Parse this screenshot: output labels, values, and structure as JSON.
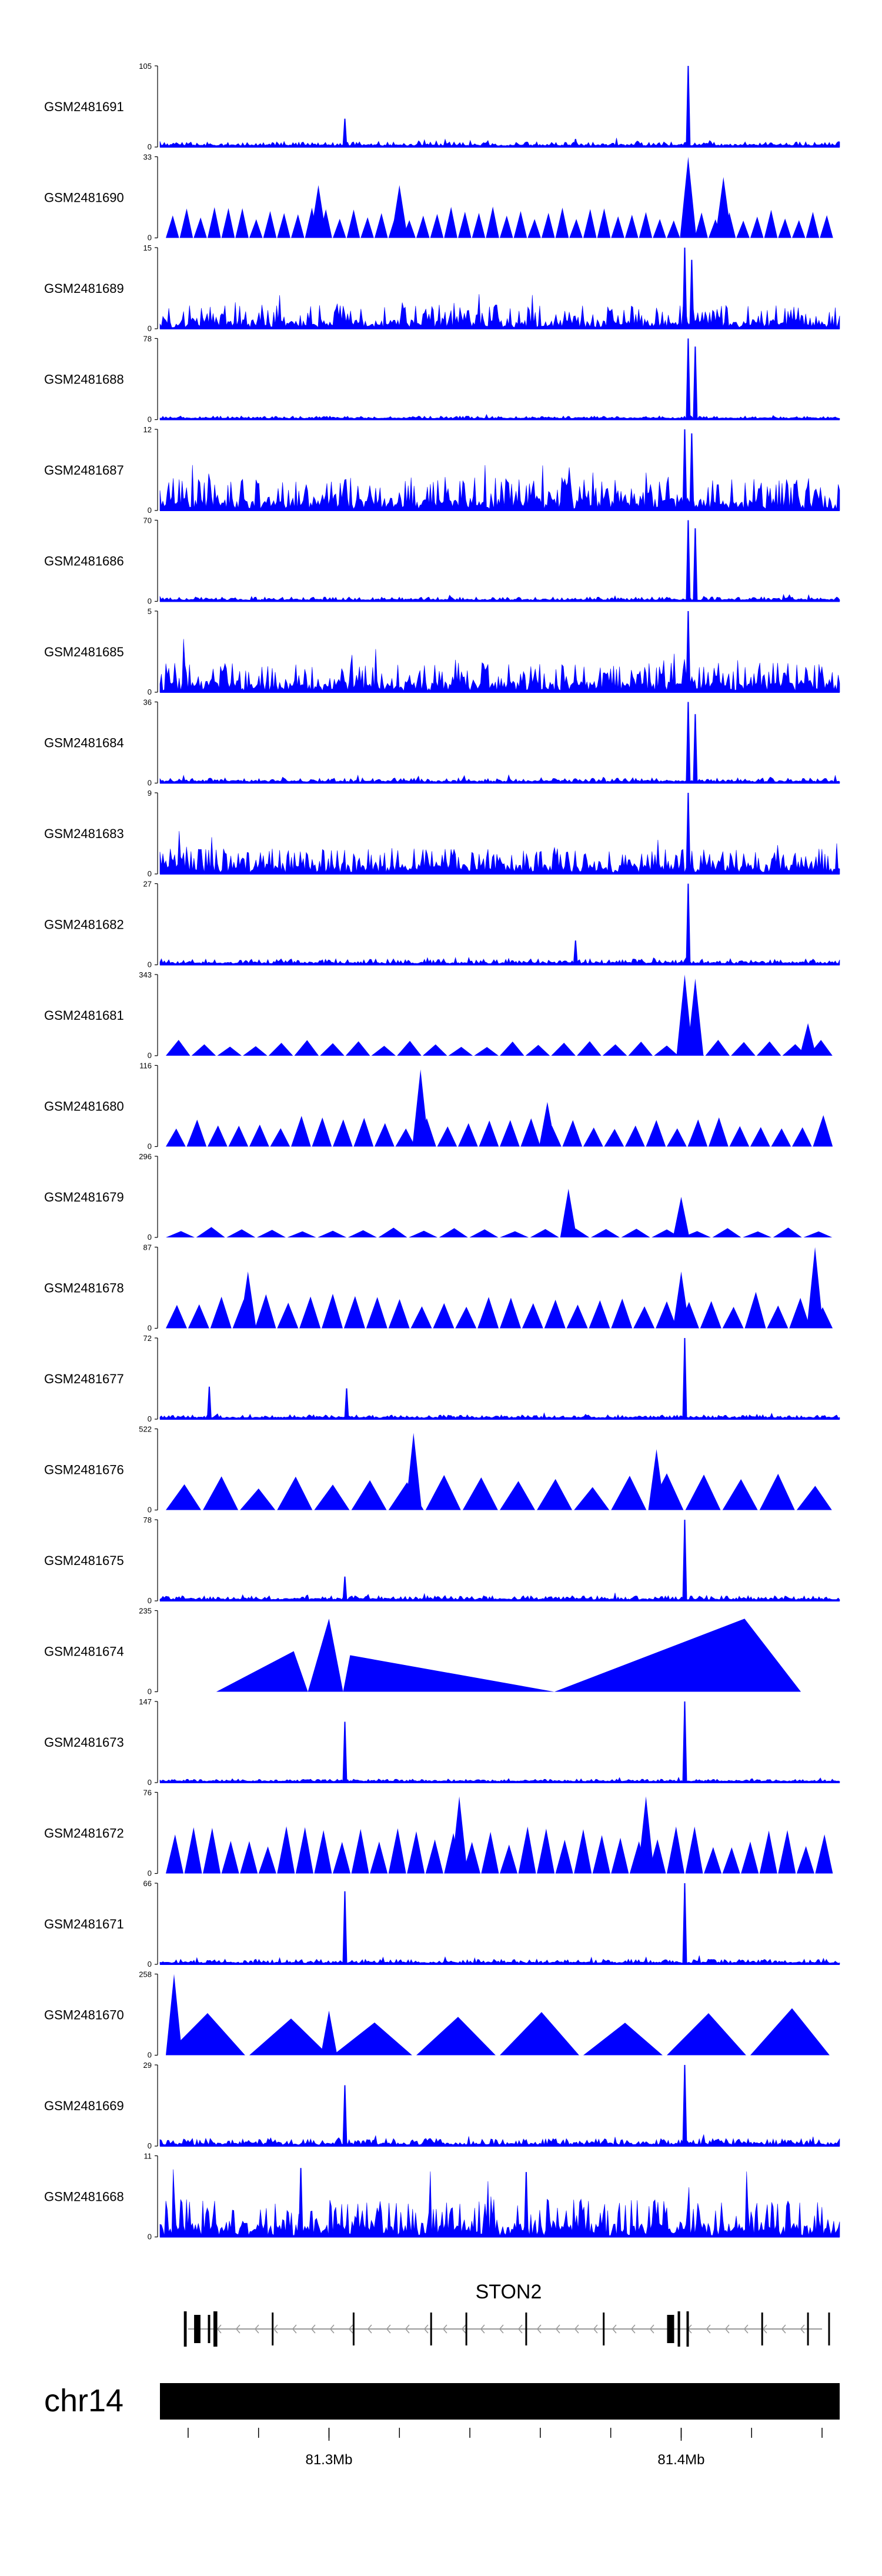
{
  "chart_data": {
    "type": "area",
    "title": "",
    "xlabel": "",
    "ylabel": "",
    "chromosome": "chr14",
    "xlim": [
      81.252,
      81.445
    ],
    "x_unit": "Mb",
    "x_ticks": [
      {
        "value": 81.3,
        "label": "81.3Mb"
      },
      {
        "value": 81.4,
        "label": "81.4Mb"
      }
    ],
    "gene": {
      "name": "STON2",
      "start": 81.26,
      "end": 81.44,
      "strand": "-"
    },
    "series": [
      {
        "name": "GSM2481691",
        "ymax": 105,
        "ymin": 0,
        "style": "dense",
        "noise": 0.05,
        "peaks": [
          [
            81.402,
            1.0
          ],
          [
            81.3045,
            0.35
          ],
          [
            81.37,
            0.1
          ]
        ]
      },
      {
        "name": "GSM2481690",
        "ymax": 33,
        "ymin": 0,
        "style": "triangles",
        "count": 48,
        "peaks": [
          [
            81.402,
            1.0
          ],
          [
            81.297,
            0.65
          ],
          [
            81.32,
            0.65
          ],
          [
            81.412,
            0.75
          ]
        ]
      },
      {
        "name": "GSM2481689",
        "ymax": 15,
        "ymin": 0,
        "style": "dense",
        "noise": 0.28,
        "peaks": [
          [
            81.401,
            1.0
          ],
          [
            81.403,
            0.85
          ]
        ]
      },
      {
        "name": "GSM2481688",
        "ymax": 78,
        "ymin": 0,
        "style": "dense",
        "noise": 0.03,
        "peaks": [
          [
            81.402,
            1.0
          ],
          [
            81.404,
            0.9
          ]
        ]
      },
      {
        "name": "GSM2481687",
        "ymax": 12,
        "ymin": 0,
        "style": "dense",
        "noise": 0.4,
        "peaks": [
          [
            81.401,
            1.0
          ],
          [
            81.403,
            0.95
          ]
        ]
      },
      {
        "name": "GSM2481686",
        "ymax": 70,
        "ymin": 0,
        "style": "dense",
        "noise": 0.04,
        "peaks": [
          [
            81.402,
            1.0
          ],
          [
            81.404,
            0.9
          ]
        ]
      },
      {
        "name": "GSM2481685",
        "ymax": 5,
        "ymin": 0,
        "style": "dense",
        "noise": 0.35,
        "peaks": [
          [
            81.402,
            1.0
          ]
        ]
      },
      {
        "name": "GSM2481684",
        "ymax": 36,
        "ymin": 0,
        "style": "dense",
        "noise": 0.05,
        "peaks": [
          [
            81.402,
            1.0
          ],
          [
            81.404,
            0.85
          ]
        ]
      },
      {
        "name": "GSM2481683",
        "ymax": 9,
        "ymin": 0,
        "style": "dense",
        "noise": 0.3,
        "peaks": [
          [
            81.402,
            1.0
          ]
        ]
      },
      {
        "name": "GSM2481682",
        "ymax": 27,
        "ymin": 0,
        "style": "dense",
        "noise": 0.06,
        "peaks": [
          [
            81.402,
            1.0
          ],
          [
            81.37,
            0.3
          ]
        ]
      },
      {
        "name": "GSM2481681",
        "ymax": 343,
        "ymin": 0,
        "style": "triangles",
        "count": 26,
        "low": 0.15,
        "peaks": [
          [
            81.401,
            1.0
          ],
          [
            81.404,
            0.95
          ],
          [
            81.436,
            0.4
          ]
        ]
      },
      {
        "name": "GSM2481680",
        "ymax": 116,
        "ymin": 0,
        "style": "triangles",
        "count": 32,
        "low": 0.3,
        "peaks": [
          [
            81.326,
            0.95
          ],
          [
            81.362,
            0.55
          ]
        ]
      },
      {
        "name": "GSM2481679",
        "ymax": 296,
        "ymin": 0,
        "style": "triangles",
        "count": 22,
        "low": 0.1,
        "peaks": [
          [
            81.368,
            0.6
          ],
          [
            81.4,
            0.5
          ]
        ]
      },
      {
        "name": "GSM2481678",
        "ymax": 87,
        "ymin": 0,
        "style": "triangles",
        "count": 30,
        "low": 0.35,
        "peaks": [
          [
            81.277,
            0.7
          ],
          [
            81.4,
            0.7
          ],
          [
            81.438,
            1.0
          ]
        ]
      },
      {
        "name": "GSM2481677",
        "ymax": 72,
        "ymin": 0,
        "style": "dense",
        "noise": 0.04,
        "peaks": [
          [
            81.401,
            1.0
          ],
          [
            81.266,
            0.4
          ],
          [
            81.305,
            0.38
          ]
        ]
      },
      {
        "name": "GSM2481676",
        "ymax": 522,
        "ymin": 0,
        "style": "triangles",
        "count": 18,
        "low": 0.35,
        "peaks": [
          [
            81.324,
            0.95
          ],
          [
            81.393,
            0.75
          ]
        ]
      },
      {
        "name": "GSM2481675",
        "ymax": 78,
        "ymin": 0,
        "style": "dense",
        "noise": 0.05,
        "peaks": [
          [
            81.401,
            1.0
          ],
          [
            81.3045,
            0.3
          ]
        ]
      },
      {
        "name": "GSM2481674",
        "ymax": 235,
        "ymin": 0,
        "style": "polygon",
        "points": [
          [
            81.268,
            0
          ],
          [
            81.29,
            0.5
          ],
          [
            81.294,
            0
          ],
          [
            81.3,
            0.9
          ],
          [
            81.304,
            0
          ],
          [
            81.306,
            0.45
          ],
          [
            81.364,
            0
          ],
          [
            81.418,
            0.9
          ],
          [
            81.434,
            0
          ]
        ]
      },
      {
        "name": "GSM2481673",
        "ymax": 147,
        "ymin": 0,
        "style": "dense",
        "noise": 0.03,
        "peaks": [
          [
            81.401,
            1.0
          ],
          [
            81.3045,
            0.75
          ]
        ]
      },
      {
        "name": "GSM2481672",
        "ymax": 76,
        "ymin": 0,
        "style": "triangles",
        "count": 36,
        "low": 0.45,
        "peaks": [
          [
            81.337,
            0.95
          ],
          [
            81.39,
            0.95
          ]
        ]
      },
      {
        "name": "GSM2481671",
        "ymax": 66,
        "ymin": 0,
        "style": "dense",
        "noise": 0.05,
        "peaks": [
          [
            81.401,
            1.0
          ],
          [
            81.3045,
            0.9
          ]
        ]
      },
      {
        "name": "GSM2481670",
        "ymax": 258,
        "ymin": 0,
        "style": "triangles",
        "count": 8,
        "low": 0.45,
        "peaks": [
          [
            81.256,
            1.0
          ],
          [
            81.3,
            0.55
          ]
        ]
      },
      {
        "name": "GSM2481669",
        "ymax": 29,
        "ymin": 0,
        "style": "dense",
        "noise": 0.08,
        "peaks": [
          [
            81.401,
            1.0
          ],
          [
            81.3045,
            0.75
          ]
        ]
      },
      {
        "name": "GSM2481668",
        "ymax": 11,
        "ymin": 0,
        "style": "dense",
        "noise": 0.45,
        "peaks": [
          [
            81.292,
            0.85
          ],
          [
            81.356,
            0.8
          ]
        ]
      }
    ]
  }
}
